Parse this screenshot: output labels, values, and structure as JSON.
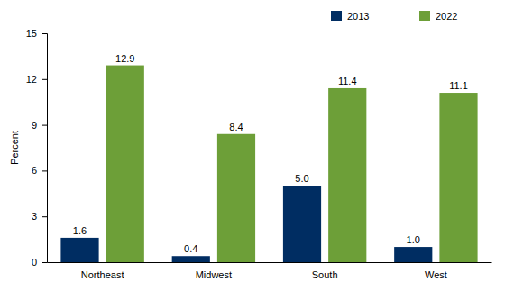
{
  "chart_data": {
    "type": "bar",
    "categories": [
      "Northeast",
      "Midwest",
      "South",
      "West"
    ],
    "series": [
      {
        "name": "2013",
        "color": "#002d62",
        "values": [
          1.6,
          0.4,
          5.0,
          1.0
        ],
        "value_labels": [
          "1.6",
          "0.4",
          "5.0",
          "1.0"
        ]
      },
      {
        "name": "2022",
        "color": "#6d9f38",
        "values": [
          12.9,
          8.4,
          11.4,
          11.1
        ]
      }
    ],
    "y_label": "Percent",
    "ylim": [
      0,
      15
    ],
    "yticks": [
      0,
      3,
      6,
      9,
      12,
      15
    ],
    "grid": false,
    "legend": "top-right",
    "data_labels": true
  }
}
